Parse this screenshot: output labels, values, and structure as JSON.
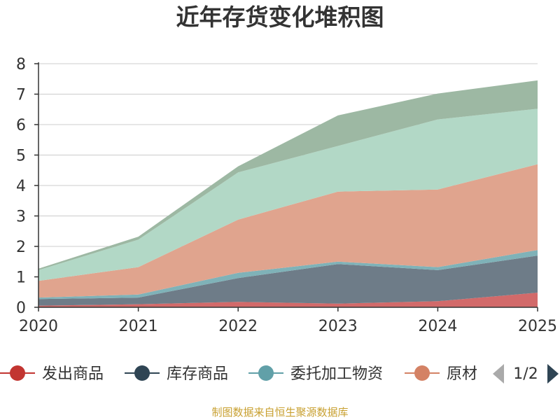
{
  "chart_data": {
    "type": "area",
    "stacked": true,
    "title": "近年存货变化堆积图",
    "ylabel": "",
    "x": [
      "2020",
      "2021",
      "2022",
      "2023",
      "2024",
      "2025"
    ],
    "ylim": [
      0,
      8
    ],
    "yticks": [
      "0",
      "1",
      "2",
      "3",
      "4",
      "5",
      "6",
      "7",
      "8"
    ],
    "grid": true,
    "series": [
      {
        "name": "发出商品",
        "color": "#d26a6a",
        "values": [
          0.05,
          0.1,
          0.18,
          0.12,
          0.2,
          0.48
        ]
      },
      {
        "name": "库存商品",
        "color": "#6e7c88",
        "values": [
          0.22,
          0.22,
          0.78,
          1.3,
          1.02,
          1.22
        ]
      },
      {
        "name": "委托加工物资",
        "color": "#7fb2b8",
        "values": [
          0.05,
          0.1,
          0.17,
          0.08,
          0.1,
          0.18
        ]
      },
      {
        "name": "原材料",
        "color": "#e0a48e",
        "values": [
          0.55,
          0.9,
          1.75,
          2.3,
          2.55,
          2.82
        ]
      },
      {
        "name": "",
        "color": "#b2d8c6",
        "values": [
          0.35,
          0.9,
          1.55,
          1.5,
          2.3,
          1.82
        ]
      },
      {
        "name": "",
        "color": "#9db8a3",
        "values": [
          0.05,
          0.1,
          0.2,
          1.0,
          0.85,
          0.93
        ]
      }
    ],
    "legend": {
      "placement": "bottom",
      "visible_items": [
        {
          "label": "发出商品",
          "color": "#c23531"
        },
        {
          "label": "库存商品",
          "color": "#2f4554"
        },
        {
          "label": "委托加工物资",
          "color": "#61a0a8"
        },
        {
          "label": "原材",
          "color": "#d48265"
        }
      ],
      "page_indicator": "1/2"
    },
    "source_note": "制图数据来自恒生聚源数据库"
  }
}
